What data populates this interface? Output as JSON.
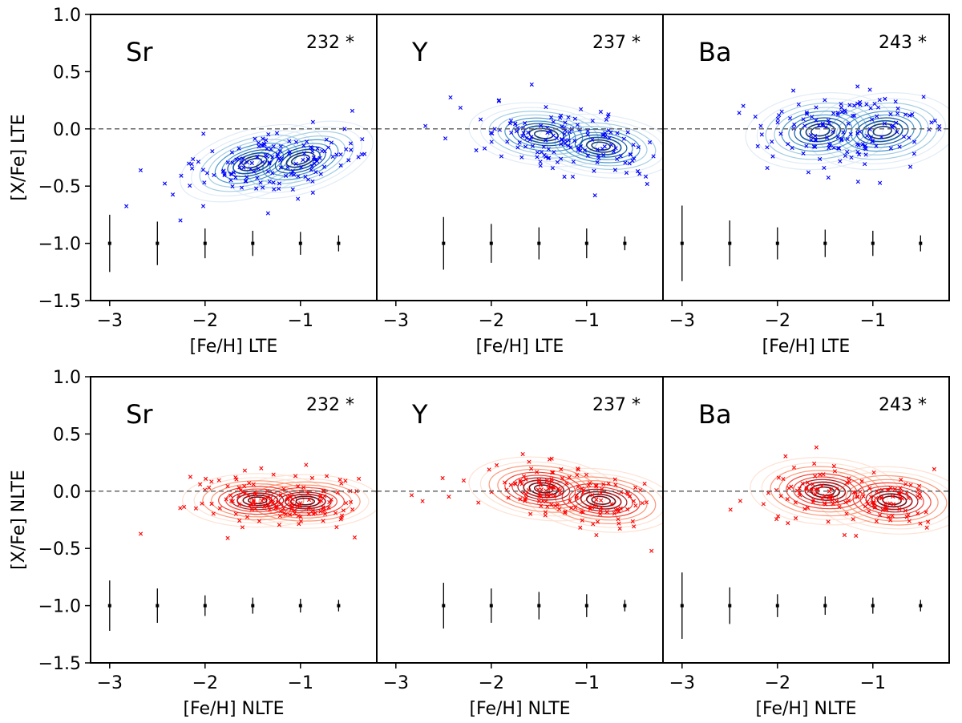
{
  "chart_data": {
    "type": "scatter",
    "description_rows": [
      {
        "row_label": "LTE",
        "ylabel": "[X/Fe] LTE",
        "xlabel": "[Fe/H] LTE",
        "color": "#0000ff",
        "contour_colors": [
          "#deebf7",
          "#9ecae1",
          "#4292c6",
          "#08519c",
          "#08306b"
        ]
      },
      {
        "row_label": "NLTE",
        "ylabel": "[X/Fe] NLTE",
        "xlabel": "[Fe/H] NLTE",
        "color": "#ff0000",
        "contour_colors": [
          "#fee0d2",
          "#fc9272",
          "#ef3b2c",
          "#a50f15",
          "#67000d"
        ]
      }
    ],
    "xlim": [
      -3.2,
      -0.2
    ],
    "ylim": [
      -1.5,
      1.0
    ],
    "xticks": [
      -3,
      -2,
      -1
    ],
    "xtick_labels": [
      "−3",
      "−2",
      "−1"
    ],
    "yticks": [
      1.0,
      0.5,
      0.0,
      -0.5,
      -1.0,
      -1.5
    ],
    "ytick_labels": [
      "1.0",
      "0.5",
      "0.0",
      "−0.5",
      "−1.0",
      "−1.5"
    ],
    "reference_line_y": 0.0,
    "panels": [
      {
        "row": 0,
        "col": 0,
        "element": "Sr",
        "count": "232 *",
        "centers": [
          [
            -1.5,
            -0.3
          ],
          [
            -1.0,
            -0.27
          ]
        ],
        "spread": [
          0.55,
          0.15
        ],
        "tilt": 0.15,
        "errorbars": [
          {
            "x": -3.0,
            "y": -1.0,
            "err": 0.25
          },
          {
            "x": -2.5,
            "y": -1.0,
            "err": 0.19
          },
          {
            "x": -2.0,
            "y": -1.0,
            "err": 0.13
          },
          {
            "x": -1.5,
            "y": -1.0,
            "err": 0.11
          },
          {
            "x": -1.0,
            "y": -1.0,
            "err": 0.1
          },
          {
            "x": -0.6,
            "y": -1.0,
            "err": 0.07
          }
        ]
      },
      {
        "row": 0,
        "col": 1,
        "element": "Y",
        "count": "237 *",
        "centers": [
          [
            -1.45,
            -0.05
          ],
          [
            -0.85,
            -0.15
          ]
        ],
        "spread": [
          0.55,
          0.14
        ],
        "tilt": -0.05,
        "errorbars": [
          {
            "x": -2.5,
            "y": -1.0,
            "err": 0.23
          },
          {
            "x": -2.0,
            "y": -1.0,
            "err": 0.17
          },
          {
            "x": -1.5,
            "y": -1.0,
            "err": 0.14
          },
          {
            "x": -1.0,
            "y": -1.0,
            "err": 0.13
          },
          {
            "x": -0.6,
            "y": -1.0,
            "err": 0.06
          }
        ]
      },
      {
        "row": 0,
        "col": 2,
        "element": "Ba",
        "count": "243 *",
        "centers": [
          [
            -1.55,
            -0.02
          ],
          [
            -0.9,
            -0.02
          ]
        ],
        "spread": [
          0.55,
          0.17
        ],
        "tilt": 0.05,
        "errorbars": [
          {
            "x": -3.0,
            "y": -1.0,
            "err": 0.33
          },
          {
            "x": -2.5,
            "y": -1.0,
            "err": 0.2
          },
          {
            "x": -2.0,
            "y": -1.0,
            "err": 0.14
          },
          {
            "x": -1.5,
            "y": -1.0,
            "err": 0.12
          },
          {
            "x": -1.0,
            "y": -1.0,
            "err": 0.11
          },
          {
            "x": -0.5,
            "y": -1.0,
            "err": 0.07
          }
        ]
      },
      {
        "row": 1,
        "col": 0,
        "element": "Sr",
        "count": "232 *",
        "centers": [
          [
            -1.45,
            -0.08
          ],
          [
            -0.95,
            -0.09
          ]
        ],
        "spread": [
          0.55,
          0.12
        ],
        "tilt": 0.0,
        "errorbars": [
          {
            "x": -3.0,
            "y": -1.0,
            "err": 0.22
          },
          {
            "x": -2.5,
            "y": -1.0,
            "err": 0.15
          },
          {
            "x": -2.0,
            "y": -1.0,
            "err": 0.09
          },
          {
            "x": -1.5,
            "y": -1.0,
            "err": 0.07
          },
          {
            "x": -1.0,
            "y": -1.0,
            "err": 0.06
          },
          {
            "x": -0.6,
            "y": -1.0,
            "err": 0.05
          }
        ]
      },
      {
        "row": 1,
        "col": 1,
        "element": "Y",
        "count": "237 *",
        "centers": [
          [
            -1.45,
            0.02
          ],
          [
            -0.85,
            -0.08
          ]
        ],
        "spread": [
          0.55,
          0.14
        ],
        "tilt": -0.05,
        "errorbars": [
          {
            "x": -2.5,
            "y": -1.0,
            "err": 0.2
          },
          {
            "x": -2.0,
            "y": -1.0,
            "err": 0.15
          },
          {
            "x": -1.5,
            "y": -1.0,
            "err": 0.12
          },
          {
            "x": -1.0,
            "y": -1.0,
            "err": 0.1
          },
          {
            "x": -0.6,
            "y": -1.0,
            "err": 0.05
          }
        ]
      },
      {
        "row": 1,
        "col": 2,
        "element": "Ba",
        "count": "243 *",
        "centers": [
          [
            -1.5,
            0.0
          ],
          [
            -0.8,
            -0.08
          ]
        ],
        "spread": [
          0.55,
          0.15
        ],
        "tilt": -0.03,
        "errorbars": [
          {
            "x": -3.0,
            "y": -1.0,
            "err": 0.29
          },
          {
            "x": -2.5,
            "y": -1.0,
            "err": 0.16
          },
          {
            "x": -2.0,
            "y": -1.0,
            "err": 0.1
          },
          {
            "x": -1.5,
            "y": -1.0,
            "err": 0.08
          },
          {
            "x": -1.0,
            "y": -1.0,
            "err": 0.07
          },
          {
            "x": -0.5,
            "y": -1.0,
            "err": 0.05
          }
        ]
      }
    ]
  }
}
